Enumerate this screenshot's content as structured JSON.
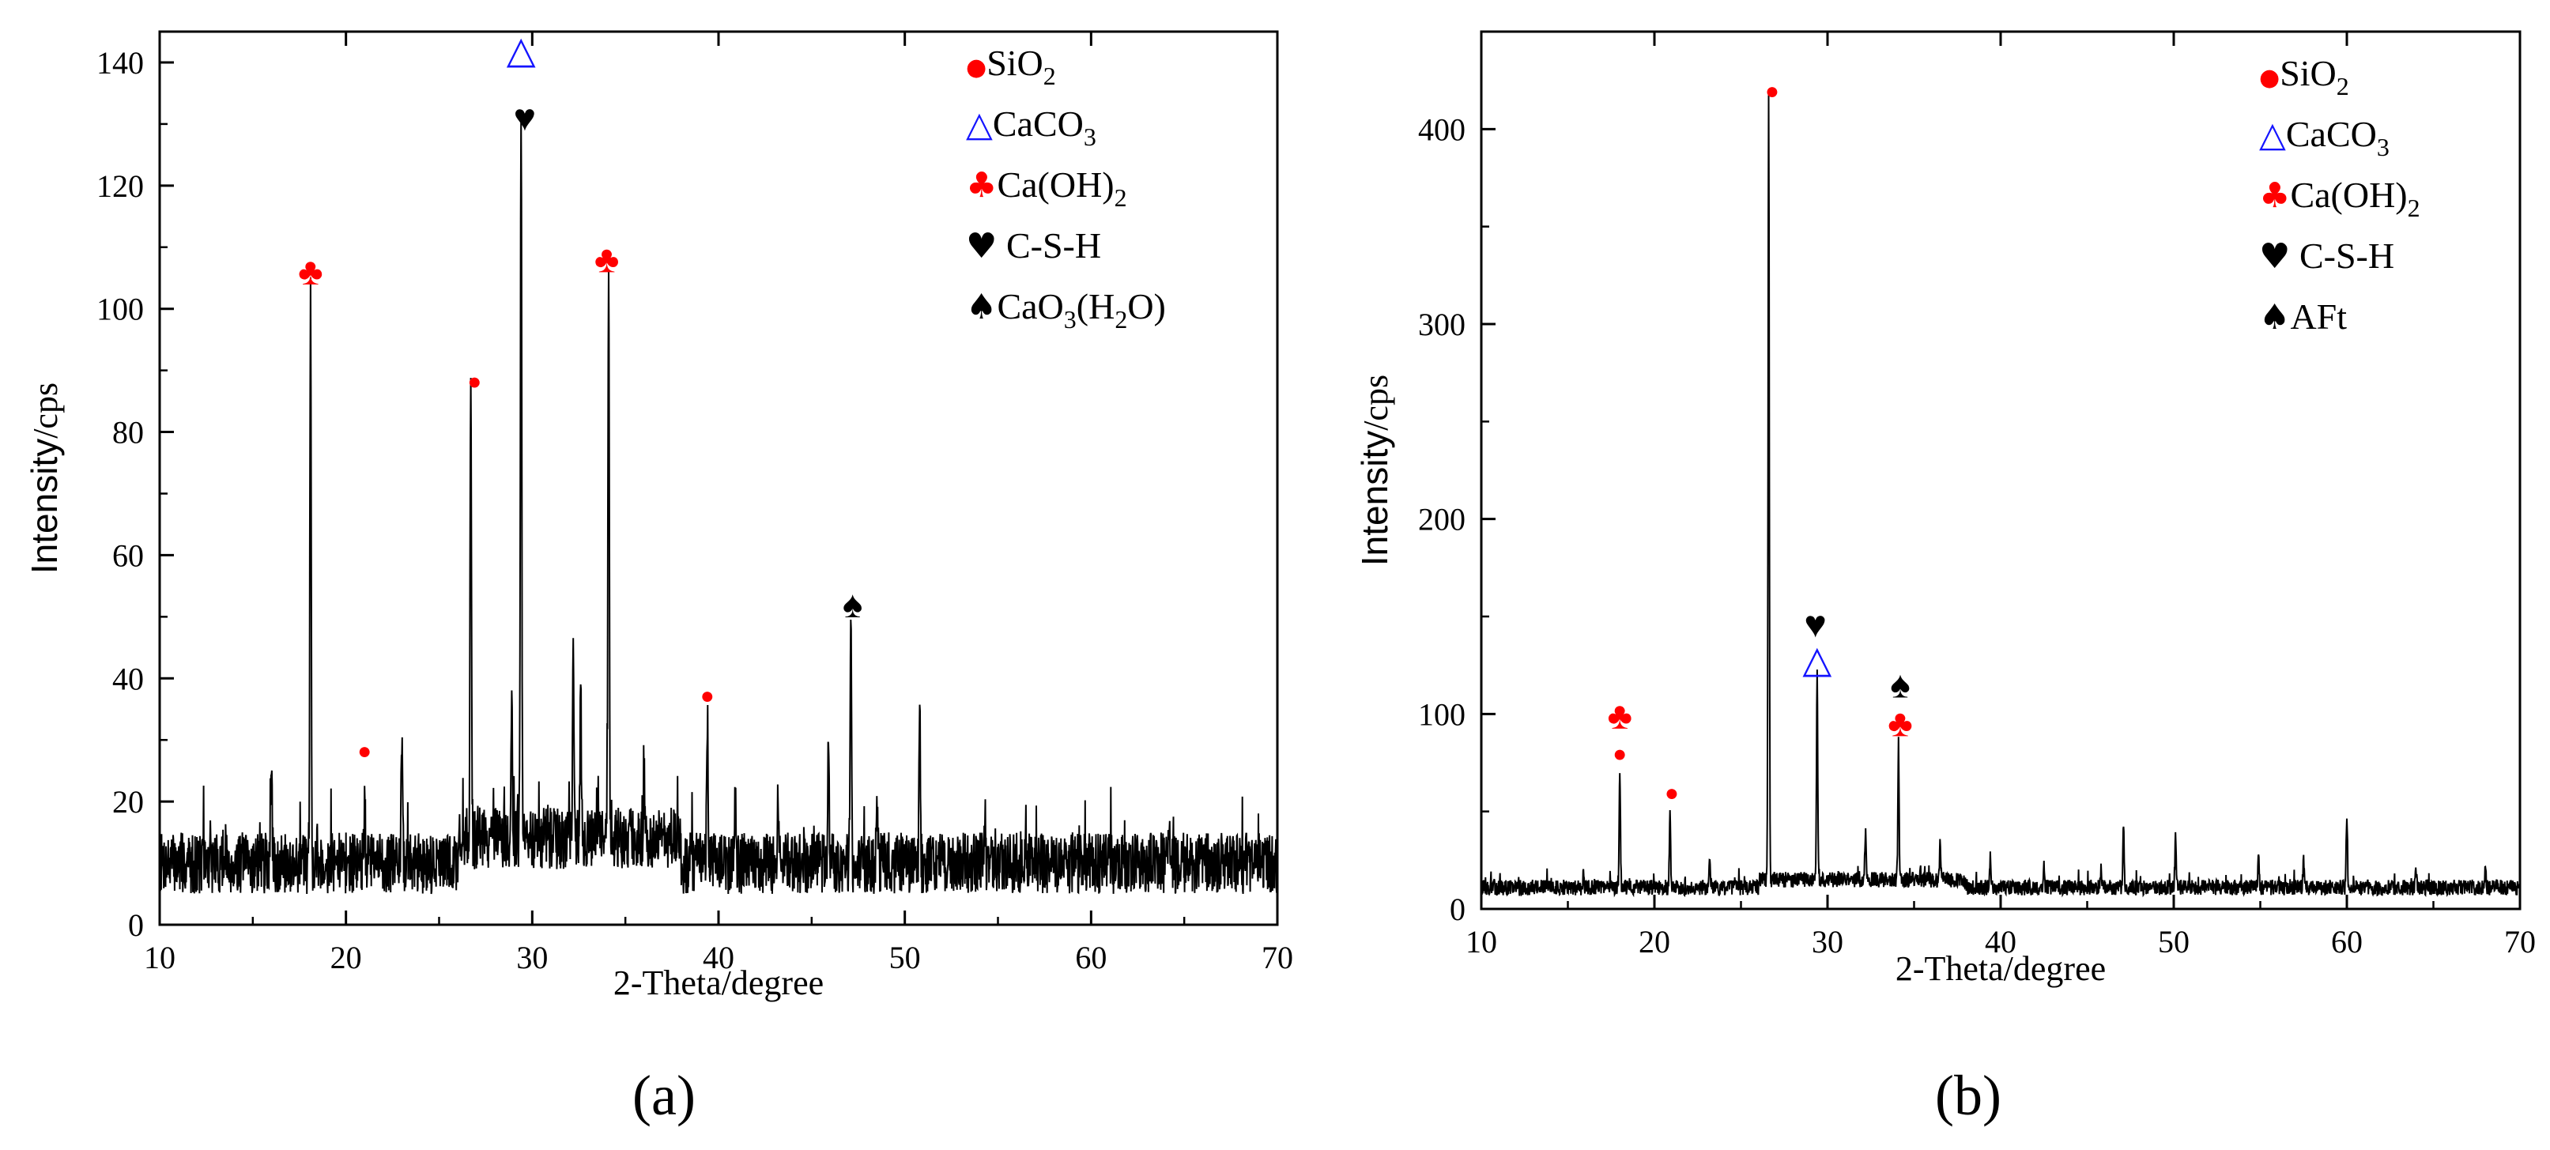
{
  "colors": {
    "red": "#ff0000",
    "blue": "#1414ff",
    "black": "#000000",
    "line": "#000000"
  },
  "chart_data": [
    {
      "type": "line",
      "panel": "(a)",
      "xlabel": "2-Theta/degree",
      "ylabel_main": "Intensity",
      "ylabel_unit": "/cps",
      "xlim": [
        10,
        70
      ],
      "ylim": [
        0,
        145
      ],
      "xticks": [
        10,
        20,
        30,
        40,
        50,
        60,
        70
      ],
      "yticks": [
        0,
        20,
        40,
        60,
        80,
        100,
        120,
        140
      ],
      "baseline": 10,
      "noise": 5,
      "seed": 7,
      "peaks": [
        {
          "x": 16.0,
          "y": 25
        },
        {
          "x": 18.1,
          "y": 102
        },
        {
          "x": 21.0,
          "y": 20
        },
        {
          "x": 23.0,
          "y": 30
        },
        {
          "x": 26.7,
          "y": 87
        },
        {
          "x": 28.9,
          "y": 35
        },
        {
          "x": 29.4,
          "y": 131
        },
        {
          "x": 32.2,
          "y": 41
        },
        {
          "x": 32.6,
          "y": 36
        },
        {
          "x": 34.1,
          "y": 106
        },
        {
          "x": 36.0,
          "y": 22
        },
        {
          "x": 39.4,
          "y": 34
        },
        {
          "x": 40.9,
          "y": 20
        },
        {
          "x": 43.2,
          "y": 21
        },
        {
          "x": 45.9,
          "y": 29
        },
        {
          "x": 47.1,
          "y": 49
        },
        {
          "x": 48.5,
          "y": 22
        },
        {
          "x": 50.8,
          "y": 34
        },
        {
          "x": 54.3,
          "y": 17
        },
        {
          "x": 56.5,
          "y": 15
        },
        {
          "x": 62.5,
          "y": 14
        },
        {
          "x": 64.2,
          "y": 14
        },
        {
          "x": 68.0,
          "y": 13
        }
      ],
      "markers": [
        {
          "symbol": "♣",
          "x": 18.1,
          "y": 106,
          "color": "red"
        },
        {
          "symbol": "●",
          "x": 21.0,
          "y": 29,
          "color": "red"
        },
        {
          "symbol": "●",
          "x": 26.9,
          "y": 89,
          "color": "red"
        },
        {
          "symbol": "△",
          "x": 29.4,
          "y": 142,
          "color": "blue"
        },
        {
          "symbol": "♥",
          "x": 29.6,
          "y": 131,
          "color": "black"
        },
        {
          "symbol": "♣",
          "x": 34.0,
          "y": 108,
          "color": "red"
        },
        {
          "symbol": "●",
          "x": 39.4,
          "y": 38,
          "color": "red"
        },
        {
          "symbol": "♠",
          "x": 47.2,
          "y": 52,
          "color": "black"
        }
      ],
      "legend": [
        {
          "symbol": "●",
          "color": "red",
          "text": "SiO",
          "sub": "2",
          "tail": ""
        },
        {
          "symbol": "△",
          "color": "blue",
          "text": "CaCO",
          "sub": "3",
          "tail": ""
        },
        {
          "symbol": "♣",
          "color": "red",
          "text": "Ca(OH)",
          "sub": "2",
          "tail": ""
        },
        {
          "symbol": "♥",
          "color": "black",
          "text": " C-S-H",
          "sub": "",
          "tail": ""
        },
        {
          "symbol": "♠",
          "color": "black",
          "text": "CaO",
          "sub": "3",
          "tail": "(H2O)"
        }
      ]
    },
    {
      "type": "line",
      "panel": "(b)",
      "xlabel": "2-Theta/degree",
      "ylabel_main": "Intensity",
      "ylabel_unit": "/cps",
      "xlim": [
        10,
        70
      ],
      "ylim": [
        0,
        450
      ],
      "xticks": [
        10,
        20,
        30,
        40,
        50,
        60,
        70
      ],
      "yticks": [
        0,
        100,
        200,
        300,
        400
      ],
      "baseline": 11,
      "noise": 4,
      "seed": 13,
      "peaks": [
        {
          "x": 15.9,
          "y": 20
        },
        {
          "x": 18.0,
          "y": 69
        },
        {
          "x": 20.9,
          "y": 48
        },
        {
          "x": 23.2,
          "y": 27
        },
        {
          "x": 26.6,
          "y": 409
        },
        {
          "x": 29.4,
          "y": 115
        },
        {
          "x": 32.2,
          "y": 37
        },
        {
          "x": 34.1,
          "y": 81
        },
        {
          "x": 36.5,
          "y": 30
        },
        {
          "x": 39.4,
          "y": 27
        },
        {
          "x": 42.5,
          "y": 22
        },
        {
          "x": 45.8,
          "y": 20
        },
        {
          "x": 47.1,
          "y": 42
        },
        {
          "x": 50.1,
          "y": 36
        },
        {
          "x": 54.9,
          "y": 27
        },
        {
          "x": 57.5,
          "y": 25
        },
        {
          "x": 60.0,
          "y": 50
        },
        {
          "x": 64.0,
          "y": 20
        },
        {
          "x": 68.0,
          "y": 23
        }
      ],
      "markers": [
        {
          "symbol": "♣",
          "x": 18.0,
          "y": 99,
          "color": "red"
        },
        {
          "symbol": "●",
          "x": 18.0,
          "y": 82,
          "color": "red"
        },
        {
          "symbol": "●",
          "x": 21.0,
          "y": 62,
          "color": "red"
        },
        {
          "symbol": "●",
          "x": 26.8,
          "y": 422,
          "color": "red"
        },
        {
          "symbol": "♥",
          "x": 29.3,
          "y": 146,
          "color": "black"
        },
        {
          "symbol": "△",
          "x": 29.4,
          "y": 128,
          "color": "blue"
        },
        {
          "symbol": "♠",
          "x": 34.2,
          "y": 115,
          "color": "black"
        },
        {
          "symbol": "♣",
          "x": 34.2,
          "y": 95,
          "color": "red"
        }
      ],
      "legend": [
        {
          "symbol": "●",
          "color": "red",
          "text": "SiO",
          "sub": "2",
          "tail": ""
        },
        {
          "symbol": "△",
          "color": "blue",
          "text": "CaCO",
          "sub": "3",
          "tail": ""
        },
        {
          "symbol": "♣",
          "color": "red",
          "text": "Ca(OH)",
          "sub": "2",
          "tail": ""
        },
        {
          "symbol": "♥",
          "color": "black",
          "text": " C-S-H",
          "sub": "",
          "tail": ""
        },
        {
          "symbol": "♠",
          "color": "black",
          "text": "AFt",
          "sub": "",
          "tail": ""
        }
      ]
    }
  ]
}
